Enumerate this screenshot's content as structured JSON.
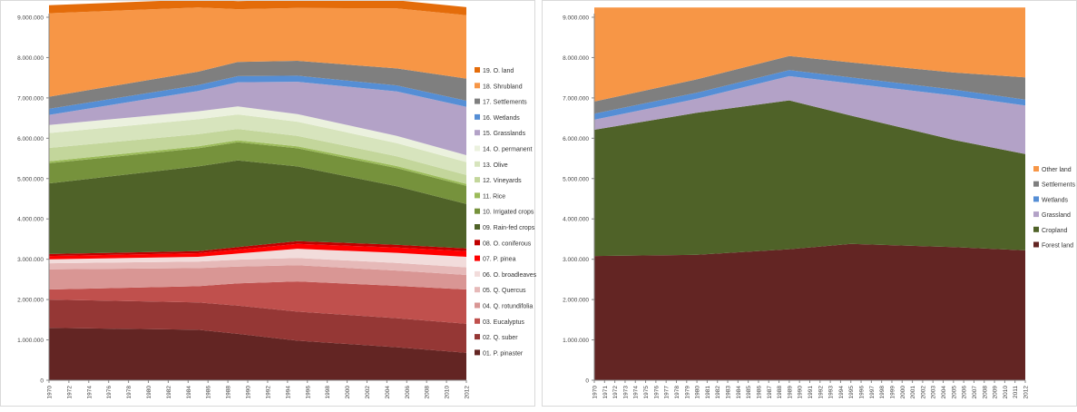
{
  "charts": [
    {
      "type": "area",
      "stacked": true,
      "title": "",
      "xlabel": "",
      "ylabel": "",
      "ylim": [
        0,
        9000000
      ],
      "yticks": [
        0,
        1000000,
        2000000,
        3000000,
        4000000,
        5000000,
        6000000,
        7000000,
        8000000,
        9000000
      ],
      "ytick_labels": [
        "0",
        "1.000.000",
        "2.000.000",
        "3.000.000",
        "4.000.000",
        "5.000.000",
        "6.000.000",
        "7.000.000",
        "8.000.000",
        "9.000.000"
      ],
      "xrange": [
        1970,
        2012
      ],
      "xtick_labels": [
        "1970",
        "1972",
        "1974",
        "1976",
        "1978",
        "1980",
        "1982",
        "1984",
        "1986",
        "1988",
        "1990",
        "1992",
        "1994",
        "1996",
        "1998",
        "2000",
        "2002",
        "2004",
        "2006",
        "2008",
        "2010",
        "2012"
      ],
      "grid": false,
      "legend_position": "right",
      "x": [
        1970,
        1985,
        1989,
        1995,
        2005,
        2012
      ],
      "series": [
        {
          "name": "01. P. pinaster",
          "color": "#632523",
          "values": [
            1300000,
            1250000,
            1150000,
            980000,
            820000,
            680000
          ]
        },
        {
          "name": "02. Q. suber",
          "color": "#953735",
          "values": [
            700000,
            680000,
            700000,
            720000,
            720000,
            720000
          ]
        },
        {
          "name": "03. Eucalyptus",
          "color": "#c0504d",
          "values": [
            250000,
            400000,
            550000,
            750000,
            800000,
            850000
          ]
        },
        {
          "name": "04. Q. rotundifolia",
          "color": "#d99694",
          "values": [
            500000,
            450000,
            420000,
            400000,
            380000,
            360000
          ]
        },
        {
          "name": "05. Q. Quercus",
          "color": "#e6b9b8",
          "values": [
            150000,
            160000,
            170000,
            180000,
            190000,
            190000
          ]
        },
        {
          "name": "06. O. broadleaves",
          "color": "#f2dcdb",
          "values": [
            100000,
            120000,
            150000,
            230000,
            250000,
            260000
          ]
        },
        {
          "name": "07. P. pinea",
          "color": "#ff0000",
          "values": [
            80000,
            90000,
            100000,
            120000,
            130000,
            140000
          ]
        },
        {
          "name": "08. O. coniferous",
          "color": "#c00000",
          "values": [
            50000,
            50000,
            60000,
            70000,
            70000,
            70000
          ]
        },
        {
          "name": "09. Rain-fed crops",
          "color": "#4f6228",
          "values": [
            1750000,
            2100000,
            2150000,
            1850000,
            1450000,
            1100000
          ]
        },
        {
          "name": "10. Irrigated crops",
          "color": "#76923c",
          "values": [
            500000,
            450000,
            450000,
            450000,
            450000,
            450000
          ]
        },
        {
          "name": "11. Rice",
          "color": "#9bbb59",
          "values": [
            50000,
            50000,
            50000,
            50000,
            50000,
            50000
          ]
        },
        {
          "name": "12. Vineyards",
          "color": "#c3d69b",
          "values": [
            330000,
            300000,
            280000,
            260000,
            240000,
            220000
          ]
        },
        {
          "name": "13. Olive",
          "color": "#d7e4bd",
          "values": [
            370000,
            370000,
            360000,
            350000,
            330000,
            320000
          ]
        },
        {
          "name": "14. O. permanent",
          "color": "#ebf1de",
          "values": [
            200000,
            200000,
            200000,
            190000,
            180000,
            170000
          ]
        },
        {
          "name": "15. Grasslands",
          "color": "#b3a2c7",
          "values": [
            250000,
            500000,
            600000,
            800000,
            1100000,
            1200000
          ]
        },
        {
          "name": "16. Wetlands",
          "color": "#558ed5",
          "values": [
            150000,
            150000,
            150000,
            150000,
            150000,
            150000
          ]
        },
        {
          "name": "17. Settlements",
          "color": "#7f7f7f",
          "values": [
            300000,
            330000,
            350000,
            370000,
            420000,
            550000
          ]
        },
        {
          "name": "18. Shrubland",
          "color": "#f79646",
          "values": [
            2070000,
            1590000,
            1310000,
            1310000,
            1490000,
            1570000
          ]
        },
        {
          "name": "19. O. land",
          "color": "#e46c0a",
          "values": [
            200000,
            200000,
            200000,
            200000,
            200000,
            200000
          ]
        }
      ]
    },
    {
      "type": "area",
      "stacked": true,
      "title": "",
      "xlabel": "",
      "ylabel": "",
      "ylim": [
        0,
        9000000
      ],
      "yticks": [
        0,
        1000000,
        2000000,
        3000000,
        4000000,
        5000000,
        6000000,
        7000000,
        8000000,
        9000000
      ],
      "ytick_labels": [
        "0",
        "1.000.000",
        "2.000.000",
        "3.000.000",
        "4.000.000",
        "5.000.000",
        "6.000.000",
        "7.000.000",
        "8.000.000",
        "9.000.000"
      ],
      "xrange": [
        1970,
        2012
      ],
      "xtick_labels": [
        "1970",
        "1971",
        "1972",
        "1973",
        "1974",
        "1975",
        "1976",
        "1977",
        "1978",
        "1979",
        "1980",
        "1981",
        "1982",
        "1983",
        "1984",
        "1985",
        "1986",
        "1987",
        "1988",
        "1989",
        "1990",
        "1991",
        "1992",
        "1993",
        "1994",
        "1995",
        "1996",
        "1997",
        "1998",
        "1999",
        "2000",
        "2001",
        "2002",
        "2003",
        "2004",
        "2005",
        "2006",
        "2007",
        "2008",
        "2009",
        "2010",
        "2011",
        "2012"
      ],
      "grid": false,
      "legend_position": "right",
      "x": [
        1970,
        1980,
        1989,
        1995,
        2005,
        2012
      ],
      "series": [
        {
          "name": "Forest land",
          "color": "#632523",
          "values": [
            3080000,
            3110000,
            3250000,
            3380000,
            3300000,
            3220000
          ]
        },
        {
          "name": "Cropland",
          "color": "#4f6228",
          "values": [
            3130000,
            3520000,
            3690000,
            3180000,
            2660000,
            2390000
          ]
        },
        {
          "name": "Grassland",
          "color": "#b3a2c7",
          "values": [
            250000,
            350000,
            600000,
            800000,
            1100000,
            1200000
          ]
        },
        {
          "name": "Wetlands",
          "color": "#558ed5",
          "values": [
            150000,
            150000,
            150000,
            150000,
            150000,
            150000
          ]
        },
        {
          "name": "Settlements",
          "color": "#7f7f7f",
          "values": [
            300000,
            330000,
            350000,
            370000,
            420000,
            550000
          ]
        },
        {
          "name": "Other land",
          "color": "#f79646",
          "values": [
            2330000,
            1780000,
            1200000,
            1360000,
            1610000,
            1730000
          ]
        }
      ]
    }
  ]
}
